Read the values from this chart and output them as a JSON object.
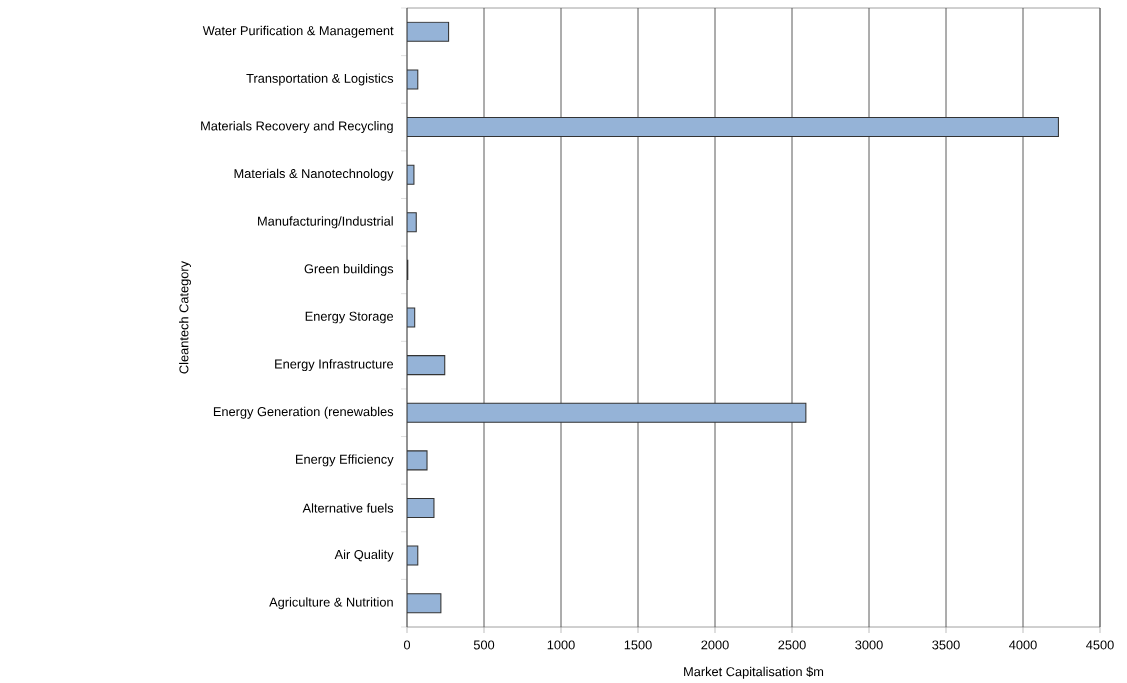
{
  "chart_data": {
    "type": "bar",
    "orientation": "horizontal",
    "xlabel": "Market Capitalisation $m",
    "ylabel": "Cleantech Category",
    "categories": [
      "Water Purification & Management",
      "Transportation & Logistics",
      "Materials Recovery and Recycling",
      "Materials & Nanotechnology",
      "Manufacturing/Industrial",
      "Green buildings",
      "Energy Storage",
      "Energy Infrastructure",
      "Energy Generation (renewables",
      "Energy Efficiency",
      "Alternative fuels",
      "Air Quality",
      "Agriculture & Nutrition"
    ],
    "values": [
      270,
      70,
      4230,
      45,
      60,
      5,
      50,
      245,
      2590,
      130,
      175,
      70,
      220
    ],
    "color": "#95b3d7",
    "xlim": [
      0,
      4500
    ],
    "xticks": [
      0,
      500,
      1000,
      1500,
      2000,
      2500,
      3000,
      3500,
      4000,
      4500
    ],
    "grid": "x"
  }
}
